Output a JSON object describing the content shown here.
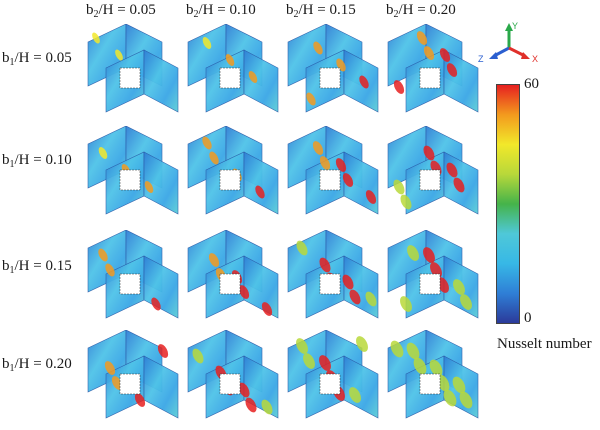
{
  "columns": [
    {
      "prefix": "b",
      "sub": "2",
      "suffix": "/H = 0.05"
    },
    {
      "prefix": "b",
      "sub": "2",
      "suffix": "/H = 0.10"
    },
    {
      "prefix": "b",
      "sub": "2",
      "suffix": "/H = 0.15"
    },
    {
      "prefix": "b",
      "sub": "2",
      "suffix": "/H = 0.20"
    }
  ],
  "rows": [
    {
      "prefix": "b",
      "sub": "1",
      "suffix": "/H = 0.05"
    },
    {
      "prefix": "b",
      "sub": "1",
      "suffix": "/H = 0.10"
    },
    {
      "prefix": "b",
      "sub": "1",
      "suffix": "/H = 0.15"
    },
    {
      "prefix": "b",
      "sub": "1",
      "suffix": "/H = 0.20"
    }
  ],
  "colorbar": {
    "max": "60",
    "min": "0",
    "title": "Nusselt number",
    "stops": [
      "#2b3a9a",
      "#2f7fd6",
      "#37b8e6",
      "#4fc8d8",
      "#45b34a",
      "#b8d83a",
      "#f2e82a",
      "#f39a1e",
      "#e62020"
    ]
  },
  "axes": {
    "y": "Y",
    "z": "Z",
    "x": "X"
  },
  "colors": {
    "axis_y": "#2aa84a",
    "axis_z": "#2b5fd0",
    "axis_x": "#e0302a"
  }
}
